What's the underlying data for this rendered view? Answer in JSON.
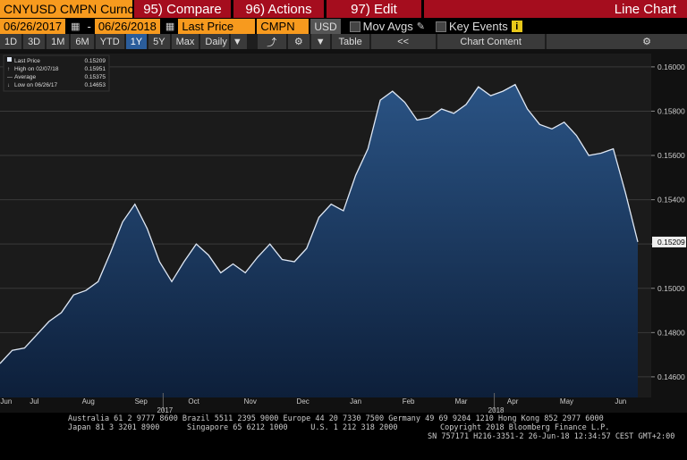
{
  "toolbar": {
    "security": "CNYUSD CMPN Curnc",
    "compare": "95) Compare",
    "actions": "96) Actions",
    "edit": "97) Edit",
    "chart_type": "Line Chart",
    "start_date": "06/26/2017",
    "end_date": "06/26/2018",
    "field": "Last Price",
    "source": "CMPN",
    "currency": "USD",
    "mov_avgs": "Mov Avgs",
    "key_events": "Key Events",
    "info": "i",
    "periods": [
      "1D",
      "3D",
      "1M",
      "6M",
      "YTD",
      "1Y",
      "5Y",
      "Max"
    ],
    "selected_period": "1Y",
    "frequency": "Daily",
    "table": "Table",
    "back": "<<",
    "chart_content": "Chart Content"
  },
  "chart_data": {
    "type": "area",
    "series": [
      {
        "name": "Last Price",
        "color": "#dfe8f5",
        "fill": "#1c3a66",
        "values": [
          0.1466,
          0.1472,
          0.1473,
          0.1479,
          0.1485,
          0.1489,
          0.1497,
          0.1499,
          0.1503,
          0.1516,
          0.153,
          0.1538,
          0.1527,
          0.1512,
          0.1503,
          0.1512,
          0.152,
          0.1515,
          0.1507,
          0.1511,
          0.1507,
          0.1514,
          0.152,
          0.1513,
          0.1512,
          0.1518,
          0.1532,
          0.1538,
          0.1535,
          0.1551,
          0.1563,
          0.1585,
          0.1589,
          0.1584,
          0.1576,
          0.1577,
          0.1581,
          0.1579,
          0.1583,
          0.1591,
          0.1587,
          0.1589,
          0.1592,
          0.1581,
          0.1574,
          0.1572,
          0.1575,
          0.1569,
          0.156,
          0.1561,
          0.1563,
          0.1543,
          0.15209
        ]
      }
    ],
    "legend": [
      {
        "label": "Last Price",
        "value": 0.15209
      },
      {
        "label": "High on 02/07/18",
        "value": 0.15951
      },
      {
        "label": "Average",
        "value": 0.15375
      },
      {
        "label": "Low on 06/26/17",
        "value": 0.14653
      }
    ],
    "ylim": [
      0.14527,
      0.1606
    ],
    "yticks": [
      {
        "value": 0.146,
        "label": "0.14600"
      },
      {
        "value": 0.148,
        "label": "0.14800"
      },
      {
        "value": 0.15,
        "label": "0.15000"
      },
      {
        "value": 0.152,
        "label": "0.15200"
      },
      {
        "value": 0.154,
        "label": "0.15400"
      },
      {
        "value": 0.156,
        "label": "0.15600"
      },
      {
        "value": 0.158,
        "label": "0.15800"
      },
      {
        "value": 0.16,
        "label": "0.16000"
      }
    ],
    "xlim": [
      0,
      53.1
    ],
    "xticks": [
      {
        "value": 0.5,
        "label": "Jun"
      },
      {
        "value": 2.8,
        "label": "Jul"
      },
      {
        "value": 7.2,
        "label": "Aug"
      },
      {
        "value": 11.5,
        "label": "Sep"
      },
      {
        "value": 15.8,
        "label": "Oct"
      },
      {
        "value": 20.4,
        "label": "Nov"
      },
      {
        "value": 24.7,
        "label": "Dec"
      },
      {
        "value": 29,
        "label": "Jan"
      },
      {
        "value": 33.3,
        "label": "Feb"
      },
      {
        "value": 37.6,
        "label": "Mar"
      },
      {
        "value": 41.8,
        "label": "Apr"
      },
      {
        "value": 46.2,
        "label": "May"
      },
      {
        "value": 50.6,
        "label": "Jun"
      }
    ],
    "year_ticks": [
      {
        "value": 13.3,
        "label": "2017"
      },
      {
        "value": 40.3,
        "label": "2018"
      }
    ],
    "grid": true
  },
  "footer": {
    "line1": "Australia 61 2 9777 8600 Brazil 5511 2395 9000 Europe 44 20 7330 7500 Germany 49 69 9204 1210 Hong Kong 852 2977 6000",
    "line2": "Japan 81 3 3201 8900      Singapore 65 6212 1000     U.S. 1 212 318 2000",
    "copyright": "Copyright 2018 Bloomberg Finance L.P.",
    "session": "SN 757171 H216-3351-2 26-Jun-18 12:34:57 CEST GMT+2:00"
  }
}
